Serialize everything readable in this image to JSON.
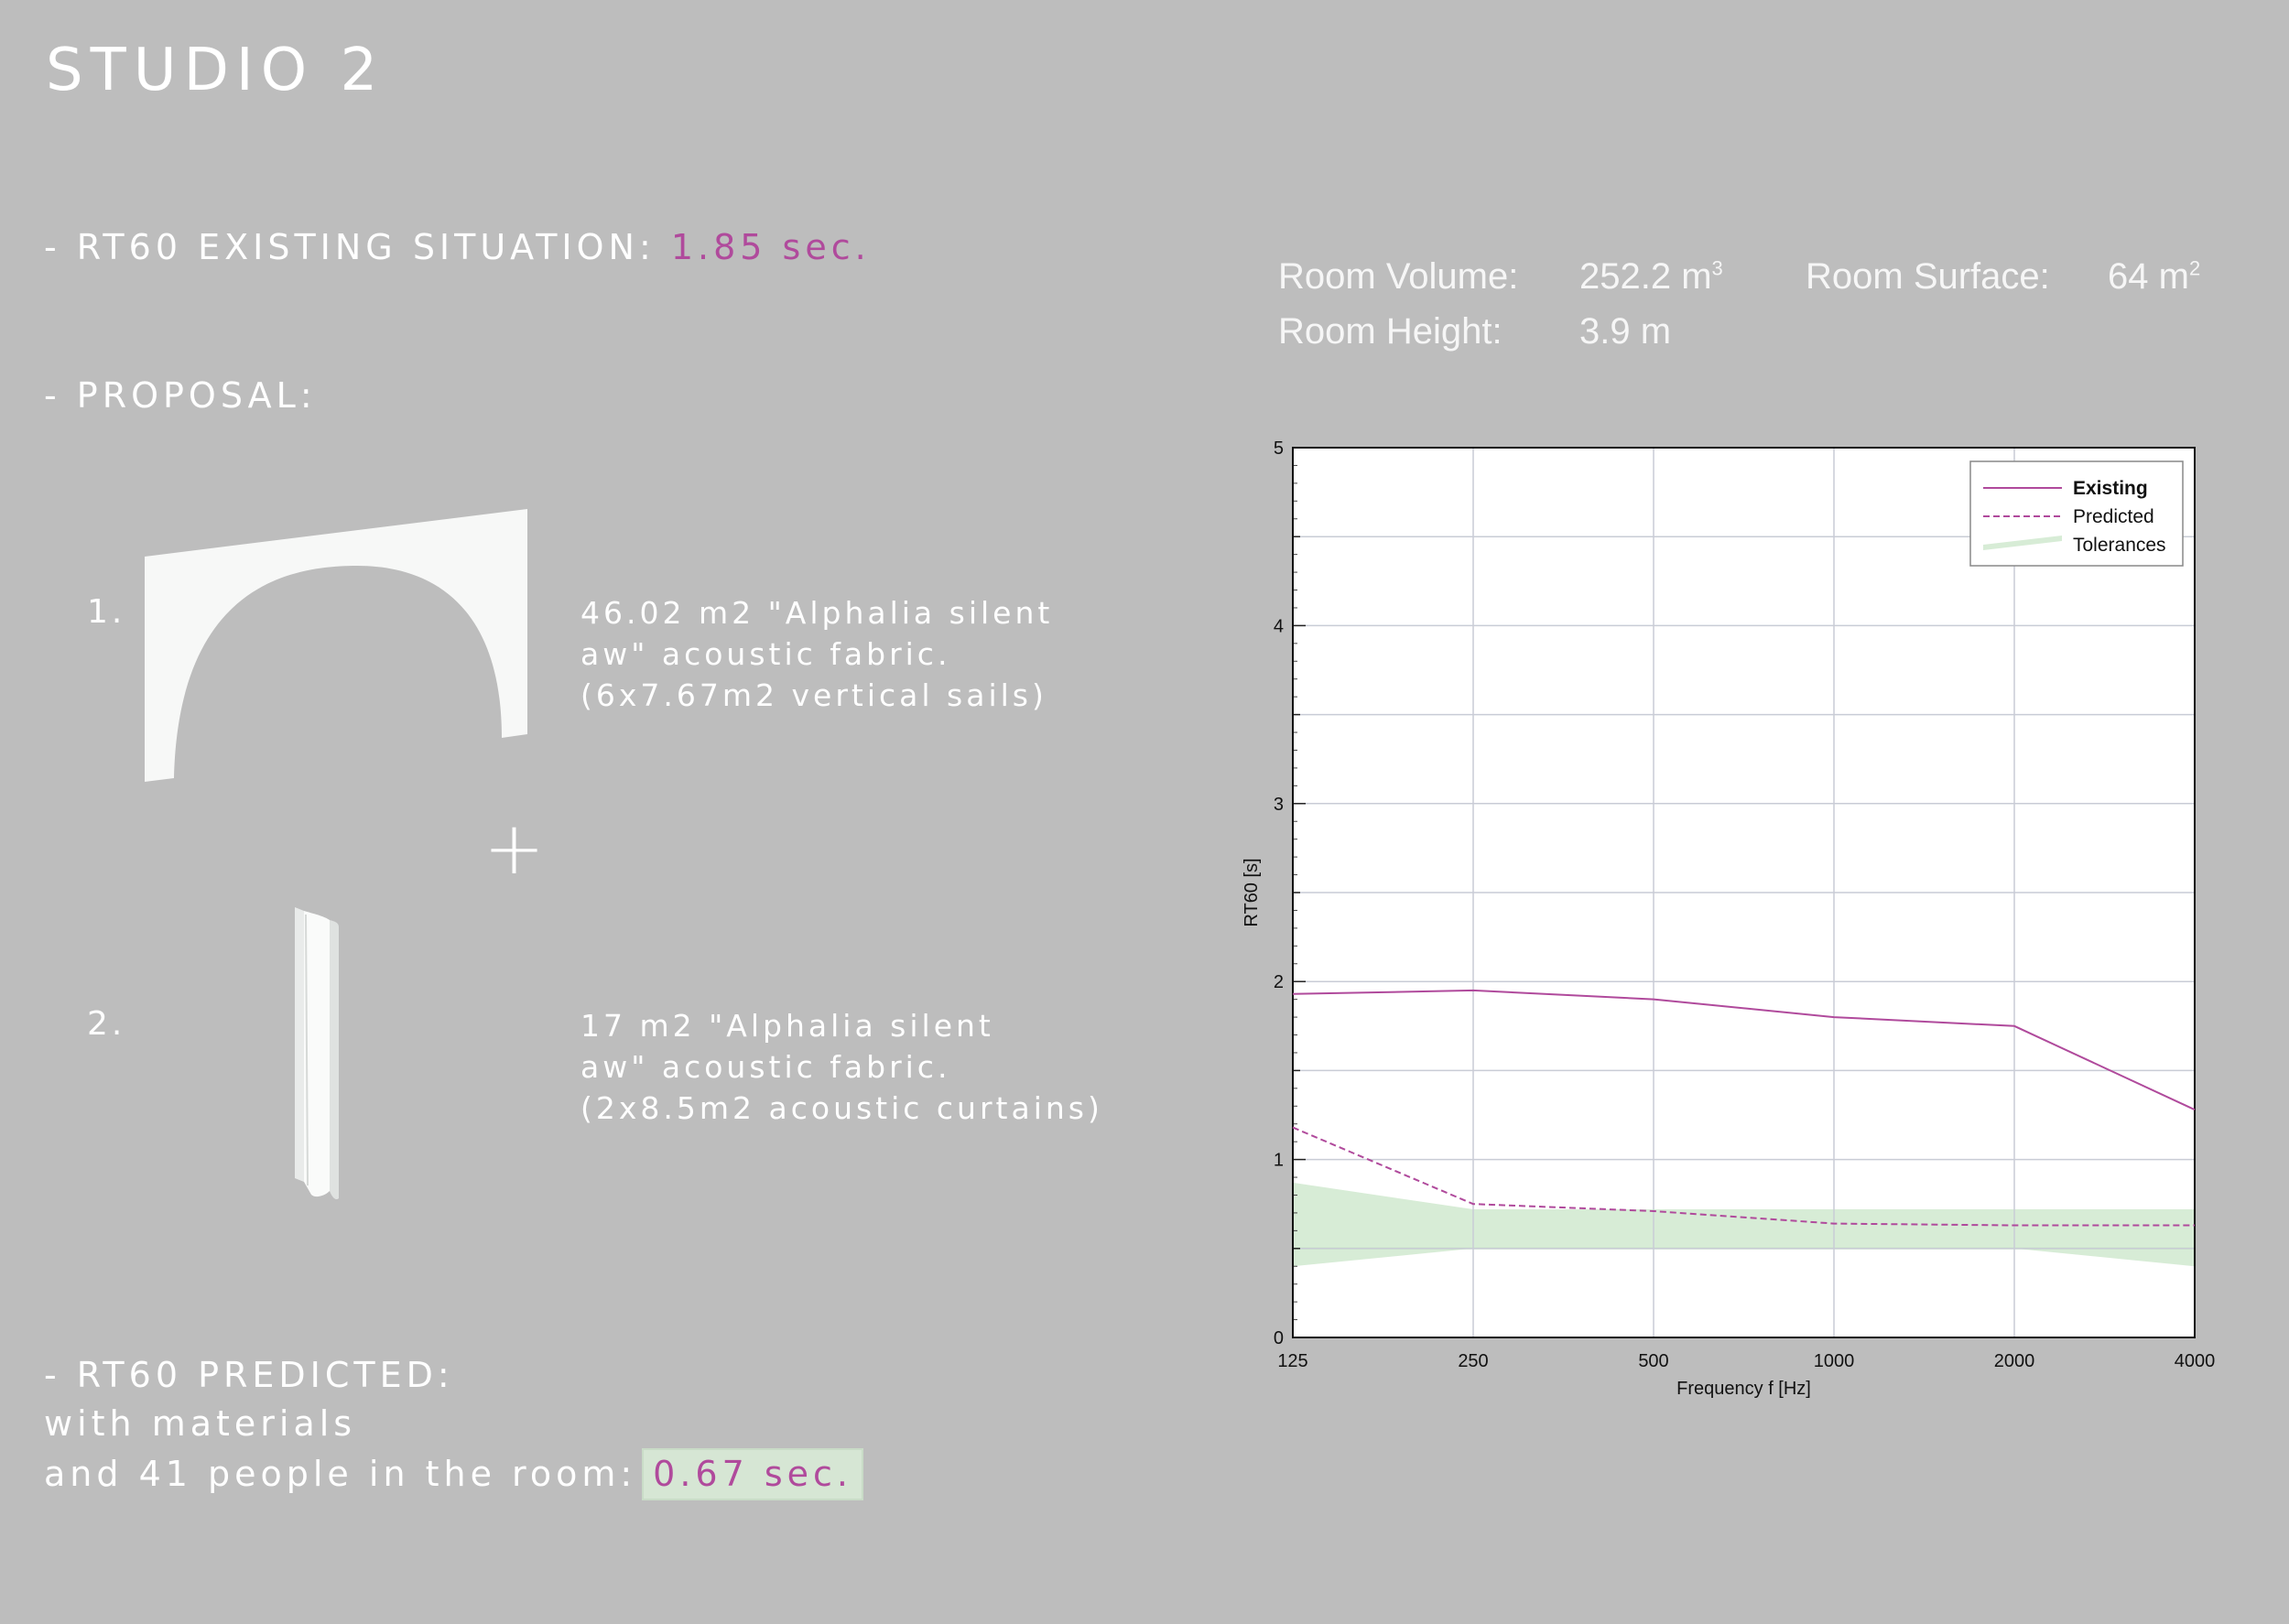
{
  "title": "STUDIO 2",
  "existing": {
    "label": "- RT60 EXISTING SITUATION: ",
    "value": "1.85 sec."
  },
  "proposal": {
    "label": "- PROPOSAL:"
  },
  "items": [
    {
      "number": "1.",
      "lines": [
        "46.02 m2 \"Alphalia silent",
        "aw\" acoustic fabric.",
        "(6x7.67m2 vertical sails)"
      ]
    },
    {
      "number": "2.",
      "lines": [
        "17 m2 \"Alphalia silent",
        "aw\" acoustic fabric.",
        "(2x8.5m2 acoustic curtains)"
      ]
    }
  ],
  "plus": "+",
  "predicted": {
    "line1": "- RT60 PREDICTED:",
    "line2": "with materials",
    "line3": "and 41 people in the room:",
    "value": "0.67 sec."
  },
  "room": {
    "volume_label": "Room Volume:",
    "volume_value": "252.2 m",
    "volume_sup": "3",
    "surface_label": "Room Surface:",
    "surface_value": "64 m",
    "surface_sup": "2",
    "height_label": "Room Height:",
    "height_value": "3.9 m"
  },
  "colors": {
    "accent": "#b04a9c",
    "tolerance": "#d7ecd6",
    "background": "#bdbdbd"
  },
  "chart_data": {
    "type": "line",
    "xlabel": "Frequency f [Hz]",
    "ylabel": "RT60 [s]",
    "x": [
      125,
      250,
      500,
      1000,
      2000,
      4000
    ],
    "x_ticks": [
      "125",
      "250",
      "500",
      "1000",
      "2000",
      "4000"
    ],
    "y_ticks": [
      "0",
      "1",
      "2",
      "3",
      "4",
      "5"
    ],
    "ylim": [
      0,
      5
    ],
    "x_scale": "log",
    "grid": true,
    "legend_position": "top-right",
    "series": [
      {
        "name": "Existing",
        "style": "solid",
        "values": [
          1.93,
          1.95,
          1.9,
          1.8,
          1.75,
          1.28
        ]
      },
      {
        "name": "Predicted",
        "style": "dashed",
        "values": [
          1.18,
          0.75,
          0.71,
          0.64,
          0.63,
          0.63
        ]
      }
    ],
    "tolerances": {
      "name": "Tolerances",
      "x": [
        125,
        250,
        500,
        1000,
        2000,
        4000
      ],
      "lower": [
        0.4,
        0.5,
        0.5,
        0.5,
        0.5,
        0.4
      ],
      "upper": [
        0.87,
        0.72,
        0.72,
        0.72,
        0.72,
        0.72
      ],
      "target": 0.5
    }
  }
}
